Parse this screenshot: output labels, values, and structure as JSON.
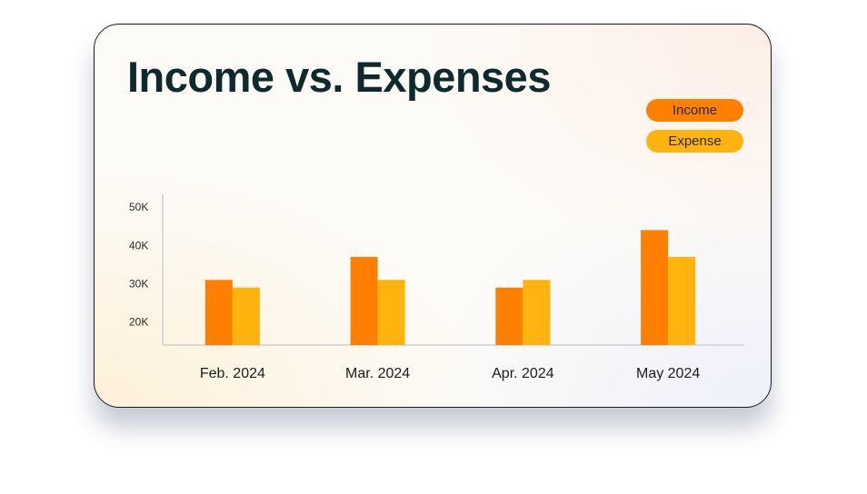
{
  "chart_data": {
    "type": "bar",
    "title": "Income vs. Expenses",
    "categories": [
      "Feb. 2024",
      "Mar. 2024",
      "Apr. 2024",
      "May 2024"
    ],
    "series": [
      {
        "name": "Income",
        "values": [
          31,
          37,
          29,
          44
        ],
        "color": "#ff7f00"
      },
      {
        "name": "Expense",
        "values": [
          29,
          31,
          31,
          37
        ],
        "color": "#ffb30f"
      }
    ],
    "y_ticks": [
      {
        "value": 20,
        "label": "20K"
      },
      {
        "value": 30,
        "label": "30K"
      },
      {
        "value": 40,
        "label": "40K"
      },
      {
        "value": 50,
        "label": "50K"
      }
    ],
    "ylim": [
      14,
      53
    ],
    "xlabel": "",
    "ylabel": "",
    "grid": false,
    "legend_position": "top-right",
    "axis_color": "#cfcfd4"
  }
}
